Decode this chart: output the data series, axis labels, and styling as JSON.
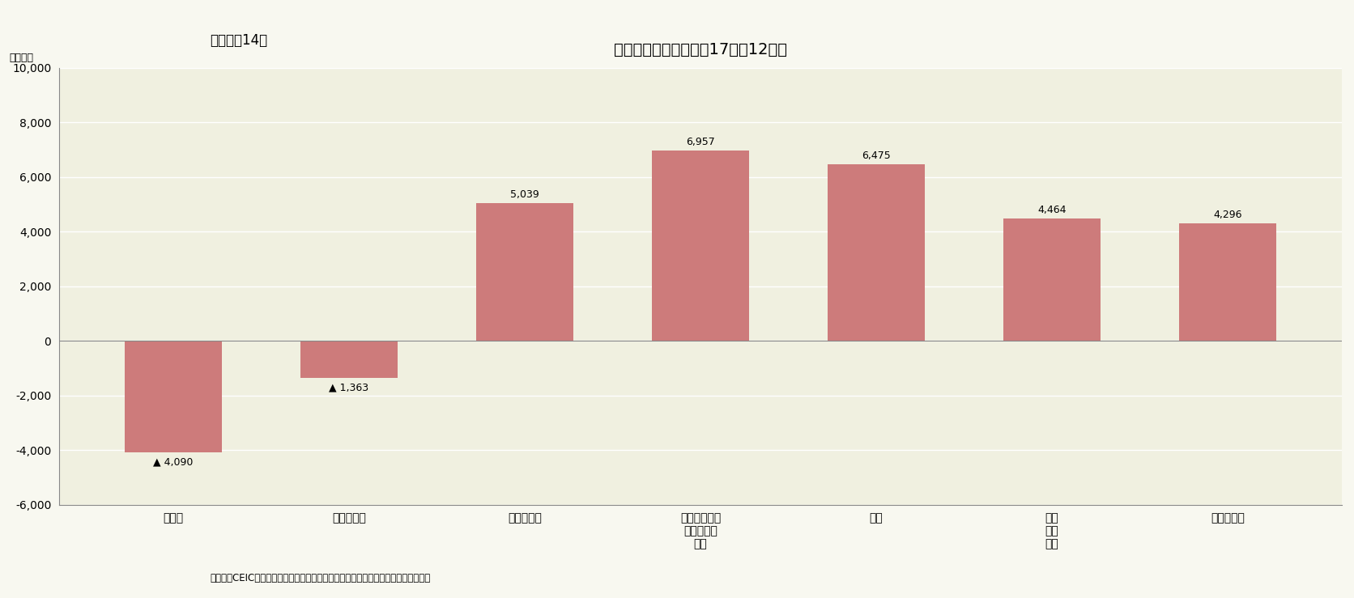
{
  "title": "固定資産投資の変化（17年－12年）",
  "subtitle": "（図表－14）",
  "ylabel_unit": "（億元）",
  "categories": [
    "採掘業",
    "鉄精錬加工",
    "自動車製造",
    "コンピュータ\n通信機器等\n製造",
    "教育",
    "文化\n体育\n娯楽",
    "情報通信等"
  ],
  "values": [
    -4090,
    -1363,
    5039,
    6957,
    6475,
    4464,
    4296
  ],
  "bar_color": "#cd7b7b",
  "bg_color": "#f0f0e0",
  "fig_bg": "#f8f8f0",
  "ylim": [
    -6000,
    10000
  ],
  "yticks": [
    -6000,
    -4000,
    -2000,
    0,
    2000,
    4000,
    6000,
    8000,
    10000
  ],
  "footnote": "（資料）CEIC（出所は中国国家統計局）のデータを元にニッセイ基礎研究所で作成",
  "data_labels_pos": [
    "▲ 4,090",
    "▲ 1,363",
    "5,039",
    "6,957",
    "6,475",
    "4,464",
    "4,296"
  ]
}
